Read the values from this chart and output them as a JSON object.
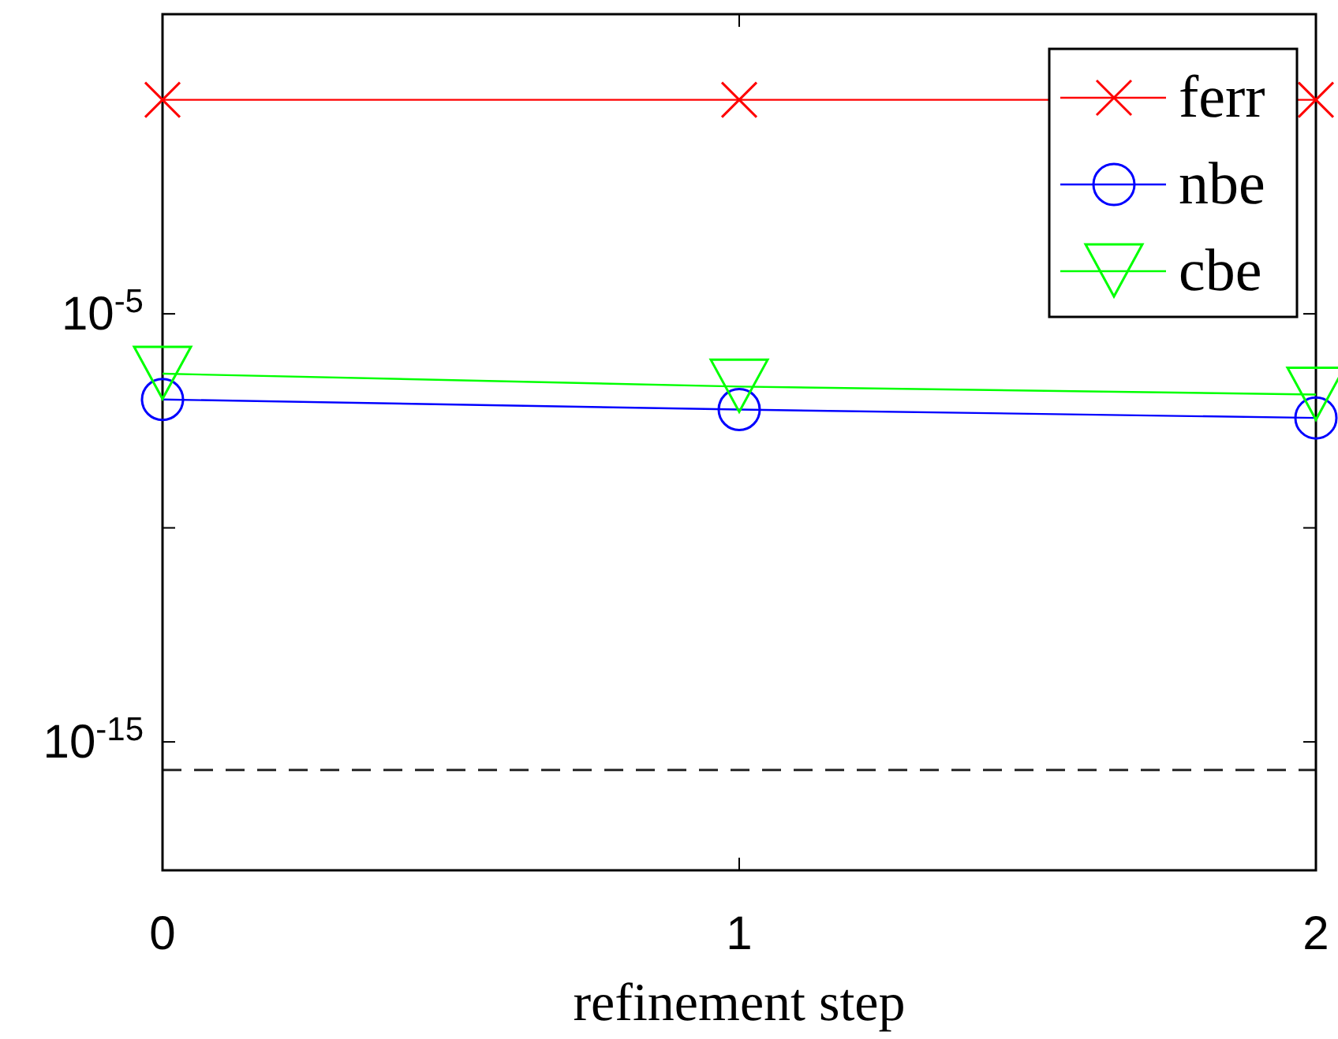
{
  "chart_data": {
    "type": "line",
    "xlabel": "refinement step",
    "x": [
      0,
      1,
      2
    ],
    "series": [
      {
        "name": "ferr",
        "color": "#ff0000",
        "marker": "cross",
        "values": [
          1,
          1,
          1
        ]
      },
      {
        "name": "nbe",
        "color": "#0000ff",
        "marker": "circle",
        "values": [
          1e-07,
          5.8e-08,
          3.7e-08
        ]
      },
      {
        "name": "cbe",
        "color": "#00ff00",
        "marker": "triangle",
        "values": [
          4e-07,
          2e-07,
          1.3e-07
        ]
      }
    ],
    "log": "y",
    "xlim": [
      0,
      2
    ],
    "xticks": [
      0,
      1,
      2
    ],
    "ylim": [
      1e-18,
      100
    ],
    "yticks": [
      {
        "value": 1e-15,
        "label": "10$^{-15}$"
      },
      {
        "value": 1e-10,
        "label": null
      },
      {
        "value": 1e-05,
        "label": "10$^{-5}$"
      }
    ],
    "ref_lines": [
      {
        "axis": "y",
        "value": 2.2e-16,
        "color": "#262626",
        "line_style": "dashed"
      }
    ],
    "legend": "top right",
    "grid": false,
    "line_style": "solid"
  }
}
